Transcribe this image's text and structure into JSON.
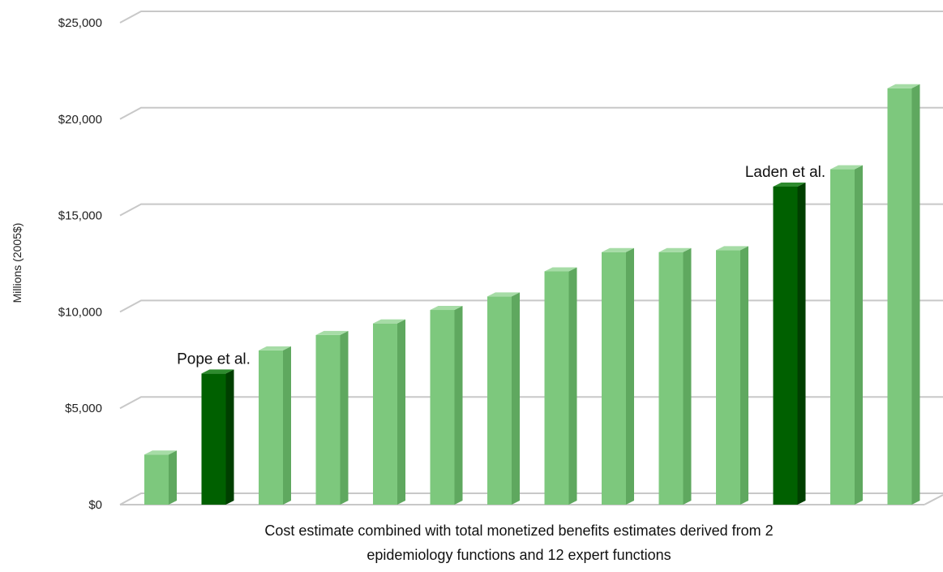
{
  "chart_data": {
    "type": "bar",
    "style": "3d-column",
    "title": "",
    "ylabel": "Millions (2005$)",
    "xlabel_lines": [
      "Cost estimate combined with total monetized benefits estimates derived from 2",
      "epidemiology functions and 12 expert functions"
    ],
    "ylim": [
      0,
      25000
    ],
    "yticks": [
      0,
      5000,
      10000,
      15000,
      20000,
      25000
    ],
    "ytick_labels": [
      "$0",
      "$5,000",
      "$10,000",
      "$15,000",
      "$20,000",
      "$25,000"
    ],
    "grid": true,
    "values": [
      2600,
      6800,
      8000,
      8800,
      9400,
      10100,
      10800,
      12100,
      13100,
      13100,
      13200,
      16500,
      17400,
      21600
    ],
    "highlight_indices": [
      1,
      11
    ],
    "colors": {
      "base_front": "#7dc87d",
      "base_side": "#5fa85f",
      "base_top": "#a6dca6",
      "highlight_front": "#006000",
      "highlight_side": "#003f00",
      "highlight_top": "#2e8b2e",
      "grid": "#c8c8c8"
    },
    "annotations": [
      {
        "text": "Pope et al.",
        "index": 1
      },
      {
        "text": "Laden et al.",
        "index": 11
      }
    ]
  }
}
